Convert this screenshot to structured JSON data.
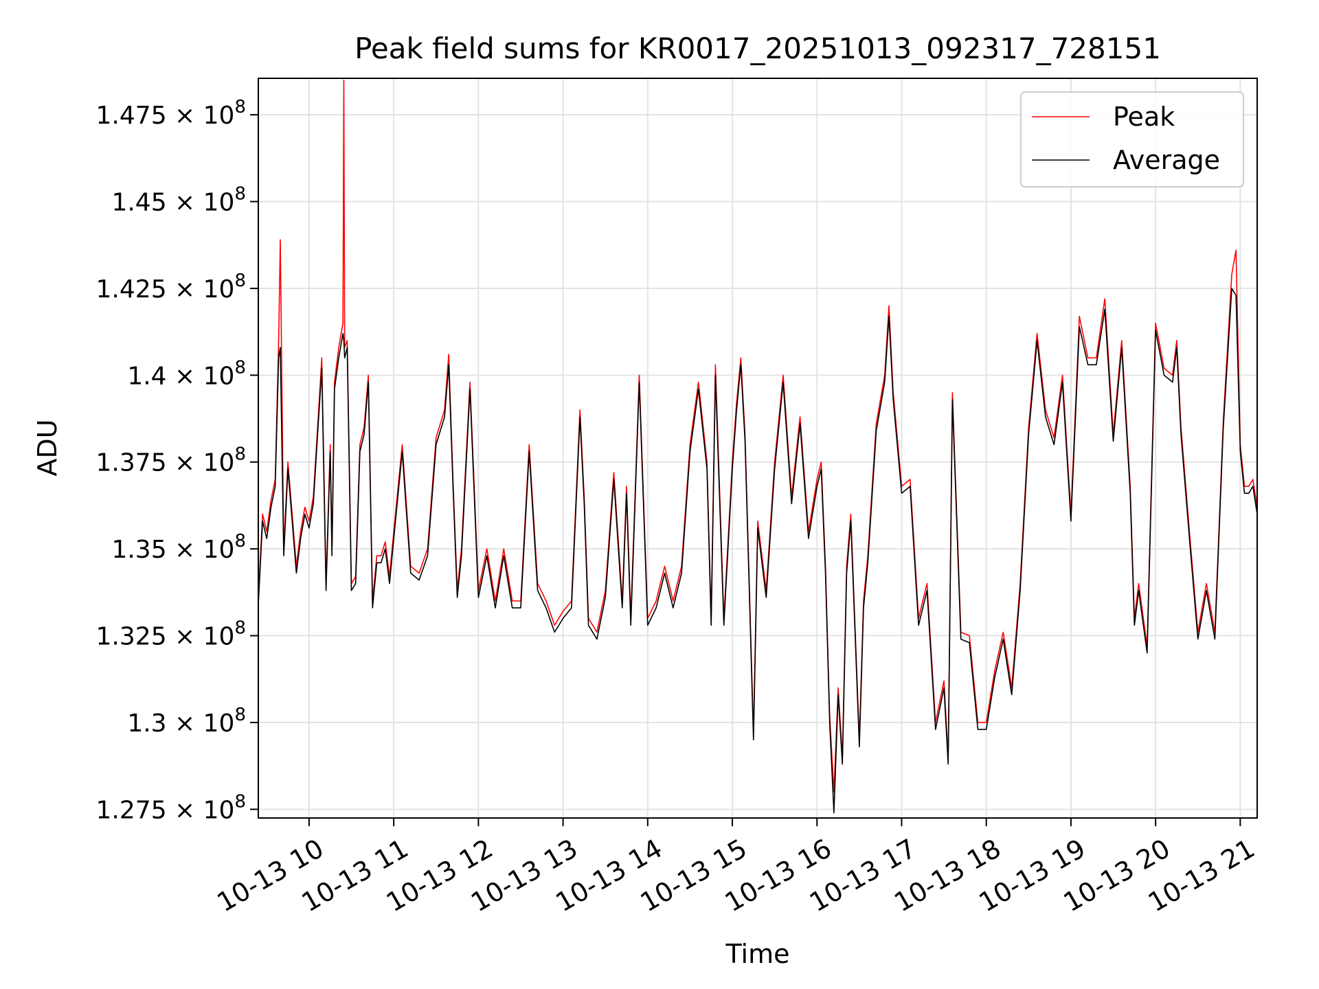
{
  "chart_data": {
    "type": "line",
    "title": "Peak field sums for KR0017_20251013_092317_728151",
    "xlabel": "Time",
    "ylabel": "ADU",
    "xlim": [
      9.4,
      21.2
    ],
    "ylim": [
      127250000,
      148550000
    ],
    "x_ticks": [
      10,
      11,
      12,
      13,
      14,
      15,
      16,
      17,
      18,
      19,
      20,
      21
    ],
    "x_tick_labels": [
      "10-13 10",
      "10-13 11",
      "10-13 12",
      "10-13 13",
      "10-13 14",
      "10-13 15",
      "10-13 16",
      "10-13 17",
      "10-13 18",
      "10-13 19",
      "10-13 20",
      "10-13 21"
    ],
    "y_ticks": [
      127500000,
      130000000,
      132500000,
      135000000,
      137500000,
      140000000,
      142500000,
      145000000,
      147500000
    ],
    "y_tick_labels": [
      {
        "mantissa": "1.275",
        "exp": "8"
      },
      {
        "mantissa": "1.3",
        "exp": "8"
      },
      {
        "mantissa": "1.325",
        "exp": "8"
      },
      {
        "mantissa": "1.35",
        "exp": "8"
      },
      {
        "mantissa": "1.375",
        "exp": "8"
      },
      {
        "mantissa": "1.4",
        "exp": "8"
      },
      {
        "mantissa": "1.425",
        "exp": "8"
      },
      {
        "mantissa": "1.45",
        "exp": "8"
      },
      {
        "mantissa": "1.475",
        "exp": "8"
      }
    ],
    "grid": true,
    "legend_position": "top-right",
    "series": [
      {
        "name": "Peak",
        "color": "#ff0000",
        "x": [
          9.4,
          9.45,
          9.5,
          9.55,
          9.6,
          9.64,
          9.66,
          9.7,
          9.75,
          9.8,
          9.85,
          9.9,
          9.95,
          10.0,
          10.05,
          10.1,
          10.15,
          10.2,
          10.25,
          10.27,
          10.3,
          10.35,
          10.4,
          10.41,
          10.42,
          10.45,
          10.5,
          10.55,
          10.6,
          10.65,
          10.7,
          10.75,
          10.8,
          10.85,
          10.9,
          10.95,
          11.0,
          11.1,
          11.2,
          11.3,
          11.4,
          11.5,
          11.6,
          11.65,
          11.7,
          11.75,
          11.8,
          11.9,
          12.0,
          12.1,
          12.2,
          12.3,
          12.4,
          12.5,
          12.6,
          12.7,
          12.8,
          12.9,
          13.0,
          13.1,
          13.2,
          13.25,
          13.3,
          13.4,
          13.5,
          13.6,
          13.7,
          13.75,
          13.8,
          13.9,
          14.0,
          14.1,
          14.2,
          14.3,
          14.4,
          14.5,
          14.6,
          14.7,
          14.75,
          14.8,
          14.9,
          15.0,
          15.05,
          15.1,
          15.15,
          15.2,
          15.25,
          15.3,
          15.4,
          15.5,
          15.6,
          15.7,
          15.8,
          15.9,
          16.0,
          16.05,
          16.1,
          16.15,
          16.2,
          16.25,
          16.3,
          16.35,
          16.4,
          16.5,
          16.55,
          16.6,
          16.7,
          16.8,
          16.85,
          16.9,
          17.0,
          17.1,
          17.2,
          17.3,
          17.4,
          17.5,
          17.55,
          17.6,
          17.7,
          17.8,
          17.9,
          18.0,
          18.1,
          18.2,
          18.3,
          18.4,
          18.5,
          18.6,
          18.7,
          18.8,
          18.9,
          19.0,
          19.1,
          19.2,
          19.3,
          19.4,
          19.5,
          19.6,
          19.7,
          19.75,
          19.8,
          19.9,
          20.0,
          20.1,
          20.2,
          20.25,
          20.3,
          20.4,
          20.5,
          20.6,
          20.7,
          20.8,
          20.9,
          20.95,
          21.0,
          21.05,
          21.1,
          21.15,
          21.2
        ],
        "y": [
          133600000,
          136000000,
          135500000,
          136400000,
          137000000,
          141000000,
          143900000,
          135000000,
          137500000,
          136000000,
          134500000,
          135500000,
          136200000,
          135800000,
          136500000,
          138500000,
          140500000,
          134000000,
          138000000,
          135000000,
          139800000,
          140800000,
          141500000,
          148500000,
          140800000,
          141000000,
          134000000,
          134200000,
          138000000,
          138500000,
          140000000,
          133500000,
          134800000,
          134800000,
          135200000,
          134200000,
          135500000,
          138000000,
          134500000,
          134300000,
          135000000,
          138200000,
          139000000,
          140600000,
          137000000,
          133800000,
          135000000,
          139800000,
          133800000,
          135000000,
          133500000,
          135000000,
          133500000,
          133500000,
          138000000,
          134000000,
          133500000,
          132800000,
          133200000,
          133500000,
          139000000,
          136500000,
          133000000,
          132600000,
          133800000,
          137200000,
          133500000,
          136800000,
          133000000,
          140000000,
          133000000,
          133500000,
          134500000,
          133500000,
          134500000,
          138000000,
          139800000,
          137500000,
          133000000,
          140300000,
          133000000,
          137500000,
          139200000,
          140500000,
          138300000,
          134000000,
          129700000,
          135800000,
          133800000,
          137500000,
          140000000,
          136500000,
          138800000,
          135500000,
          137000000,
          137500000,
          134500000,
          130200000,
          128000000,
          131000000,
          129000000,
          134500000,
          136000000,
          129500000,
          133500000,
          134800000,
          138600000,
          140000000,
          142000000,
          139500000,
          136800000,
          137000000,
          133000000,
          134000000,
          130000000,
          131200000,
          129000000,
          139500000,
          132600000,
          132500000,
          130000000,
          130000000,
          131500000,
          132600000,
          131000000,
          134000000,
          138500000,
          141200000,
          139000000,
          138200000,
          140000000,
          136000000,
          141700000,
          140500000,
          140500000,
          142200000,
          138300000,
          141000000,
          136800000,
          133000000,
          134000000,
          132200000,
          141500000,
          140200000,
          140000000,
          141000000,
          138500000,
          135500000,
          132600000,
          134000000,
          132600000,
          138700000,
          142900000,
          143600000,
          138000000,
          136800000,
          136800000,
          137000000,
          136200000
        ]
      },
      {
        "name": "Average",
        "color": "#000000",
        "x": [
          9.4,
          9.45,
          9.5,
          9.55,
          9.6,
          9.64,
          9.66,
          9.7,
          9.75,
          9.8,
          9.85,
          9.9,
          9.95,
          10.0,
          10.05,
          10.1,
          10.15,
          10.2,
          10.25,
          10.27,
          10.3,
          10.35,
          10.4,
          10.41,
          10.42,
          10.45,
          10.5,
          10.55,
          10.6,
          10.65,
          10.7,
          10.75,
          10.8,
          10.85,
          10.9,
          10.95,
          11.0,
          11.1,
          11.2,
          11.3,
          11.4,
          11.5,
          11.6,
          11.65,
          11.7,
          11.75,
          11.8,
          11.9,
          12.0,
          12.1,
          12.2,
          12.3,
          12.4,
          12.5,
          12.6,
          12.7,
          12.8,
          12.9,
          13.0,
          13.1,
          13.2,
          13.25,
          13.3,
          13.4,
          13.5,
          13.6,
          13.7,
          13.75,
          13.8,
          13.9,
          14.0,
          14.1,
          14.2,
          14.3,
          14.4,
          14.5,
          14.6,
          14.7,
          14.75,
          14.8,
          14.9,
          15.0,
          15.05,
          15.1,
          15.15,
          15.2,
          15.25,
          15.3,
          15.4,
          15.5,
          15.6,
          15.7,
          15.8,
          15.9,
          16.0,
          16.05,
          16.1,
          16.15,
          16.2,
          16.25,
          16.3,
          16.35,
          16.4,
          16.5,
          16.55,
          16.6,
          16.7,
          16.8,
          16.85,
          16.9,
          17.0,
          17.1,
          17.2,
          17.3,
          17.4,
          17.5,
          17.55,
          17.6,
          17.7,
          17.8,
          17.9,
          18.0,
          18.1,
          18.2,
          18.3,
          18.4,
          18.5,
          18.6,
          18.7,
          18.8,
          18.9,
          19.0,
          19.1,
          19.2,
          19.3,
          19.4,
          19.5,
          19.6,
          19.7,
          19.75,
          19.8,
          19.9,
          20.0,
          20.1,
          20.2,
          20.25,
          20.3,
          20.4,
          20.5,
          20.6,
          20.7,
          20.8,
          20.9,
          20.95,
          21.0,
          21.05,
          21.1,
          21.15,
          21.2
        ],
        "y": [
          133400000,
          135800000,
          135300000,
          136200000,
          136800000,
          140500000,
          140800000,
          134800000,
          137300000,
          135800000,
          134300000,
          135300000,
          136000000,
          135600000,
          136300000,
          138300000,
          140200000,
          133800000,
          137800000,
          134800000,
          139600000,
          140500000,
          141200000,
          141000000,
          140500000,
          140800000,
          133800000,
          134000000,
          137800000,
          138300000,
          139800000,
          133300000,
          134600000,
          134600000,
          135000000,
          134000000,
          135300000,
          137800000,
          134300000,
          134100000,
          134800000,
          138000000,
          138800000,
          140300000,
          136800000,
          133600000,
          134800000,
          139600000,
          133600000,
          134800000,
          133300000,
          134800000,
          133300000,
          133300000,
          137800000,
          133800000,
          133300000,
          132600000,
          133000000,
          133300000,
          138800000,
          136300000,
          132800000,
          132400000,
          133600000,
          137000000,
          133300000,
          136600000,
          132800000,
          139800000,
          132800000,
          133300000,
          134300000,
          133300000,
          134300000,
          137800000,
          139600000,
          137300000,
          132800000,
          140000000,
          132800000,
          137300000,
          139000000,
          140300000,
          138100000,
          133800000,
          129500000,
          135600000,
          133600000,
          137300000,
          139800000,
          136300000,
          138600000,
          135300000,
          136800000,
          137300000,
          134300000,
          130000000,
          127400000,
          130800000,
          128800000,
          134300000,
          135800000,
          129300000,
          133300000,
          134600000,
          138400000,
          139800000,
          141700000,
          139300000,
          136600000,
          136800000,
          132800000,
          133800000,
          129800000,
          131000000,
          128800000,
          139300000,
          132400000,
          132300000,
          129800000,
          129800000,
          131300000,
          132400000,
          130800000,
          133800000,
          138300000,
          141000000,
          138800000,
          138000000,
          139800000,
          135800000,
          141400000,
          140300000,
          140300000,
          141900000,
          138100000,
          140800000,
          136600000,
          132800000,
          133800000,
          132000000,
          141300000,
          140000000,
          139800000,
          140800000,
          138300000,
          135300000,
          132400000,
          133800000,
          132400000,
          138500000,
          142500000,
          142300000,
          137800000,
          136600000,
          136600000,
          136800000,
          136000000
        ]
      }
    ]
  }
}
